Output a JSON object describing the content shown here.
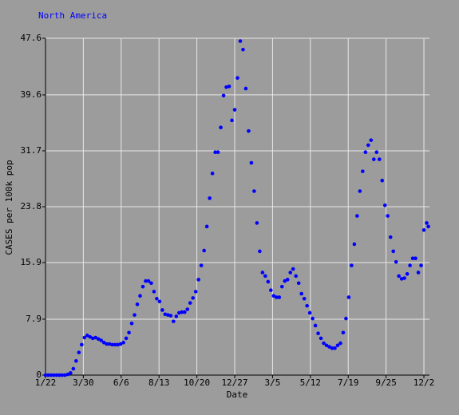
{
  "chart_data": {
    "type": "scatter",
    "title": "North America",
    "x_label": "Date",
    "y_label": "CASES per 100k pop",
    "xlim": [
      0,
      690
    ],
    "ylim": [
      0,
      47.6
    ],
    "xticks": [
      {
        "value": 0,
        "label": "1/22"
      },
      {
        "value": 68,
        "label": "3/30"
      },
      {
        "value": 136,
        "label": "6/6"
      },
      {
        "value": 204,
        "label": "8/13"
      },
      {
        "value": 272,
        "label": "10/20"
      },
      {
        "value": 340,
        "label": "12/27"
      },
      {
        "value": 408,
        "label": "3/5"
      },
      {
        "value": 476,
        "label": "5/12"
      },
      {
        "value": 544,
        "label": "7/19"
      },
      {
        "value": 612,
        "label": "9/25"
      },
      {
        "value": 680,
        "label": "12/2"
      }
    ],
    "yticks": [
      0,
      7.9,
      15.9,
      23.8,
      31.7,
      39.6,
      47.6
    ],
    "grid": true,
    "series": [
      {
        "color": "#0000ff",
        "x": [
          0,
          5,
          10,
          15,
          20,
          25,
          30,
          35,
          40,
          45,
          50,
          55,
          60,
          65,
          70,
          75,
          80,
          85,
          90,
          95,
          100,
          105,
          110,
          115,
          120,
          125,
          130,
          135,
          140,
          145,
          150,
          155,
          160,
          165,
          170,
          175,
          180,
          185,
          190,
          195,
          200,
          205,
          210,
          215,
          220,
          225,
          230,
          235,
          240,
          245,
          250,
          255,
          260,
          265,
          270,
          275,
          280,
          285,
          290,
          295,
          300,
          305,
          310,
          315,
          320,
          325,
          330,
          335,
          340,
          345,
          350,
          355,
          360,
          365,
          370,
          375,
          380,
          385,
          390,
          395,
          400,
          405,
          410,
          415,
          420,
          425,
          430,
          435,
          440,
          445,
          450,
          455,
          460,
          465,
          470,
          475,
          480,
          485,
          490,
          495,
          500,
          505,
          510,
          515,
          520,
          525,
          530,
          535,
          540,
          545,
          550,
          555,
          560,
          565,
          570,
          575,
          580,
          585,
          590,
          595,
          600,
          605,
          610,
          615,
          620,
          625,
          630,
          635,
          640,
          645,
          650,
          655,
          660,
          665,
          670,
          675,
          680,
          685,
          688
        ],
        "values": [
          0,
          0,
          0,
          0,
          0,
          0,
          0,
          0,
          0.1,
          0.3,
          0.9,
          2,
          3.2,
          4.3,
          5.3,
          5.6,
          5.4,
          5.2,
          5.3,
          5.1,
          4.9,
          4.6,
          4.4,
          4.4,
          4.3,
          4.3,
          4.3,
          4.4,
          4.6,
          5.2,
          6,
          7.3,
          8.5,
          10,
          11.2,
          12.5,
          13.3,
          13.3,
          13,
          11.8,
          10.8,
          10.4,
          9.2,
          8.6,
          8.5,
          8.4,
          7.6,
          8.3,
          8.8,
          8.9,
          8.9,
          9.3,
          10.2,
          10.9,
          11.8,
          13.5,
          15.5,
          17.6,
          21,
          25,
          28.5,
          31.5,
          31.5,
          35,
          39.5,
          40.7,
          40.8,
          36,
          37.5,
          42,
          47.2,
          46,
          40.5,
          34.5,
          30,
          26,
          21.5,
          17.5,
          14.5,
          14,
          13.2,
          12,
          11.2,
          11,
          11,
          12.5,
          13.3,
          13.5,
          14.5,
          15,
          14,
          13,
          11.5,
          10.8,
          9.8,
          8.8,
          8,
          7,
          5.9,
          5.2,
          4.5,
          4.2,
          4,
          3.8,
          3.8,
          4.2,
          4.5,
          6,
          8,
          11,
          15.5,
          18.5,
          22.5,
          26,
          28.8,
          31.5,
          32.5,
          33.2,
          30.5,
          31.5,
          30.5,
          27.5,
          24,
          22.5,
          19.5,
          17.5,
          16,
          14,
          13.6,
          13.7,
          14.3,
          15.5,
          16.5,
          16.5,
          14.5,
          15.5,
          20.5,
          21.5,
          21
        ]
      }
    ]
  }
}
